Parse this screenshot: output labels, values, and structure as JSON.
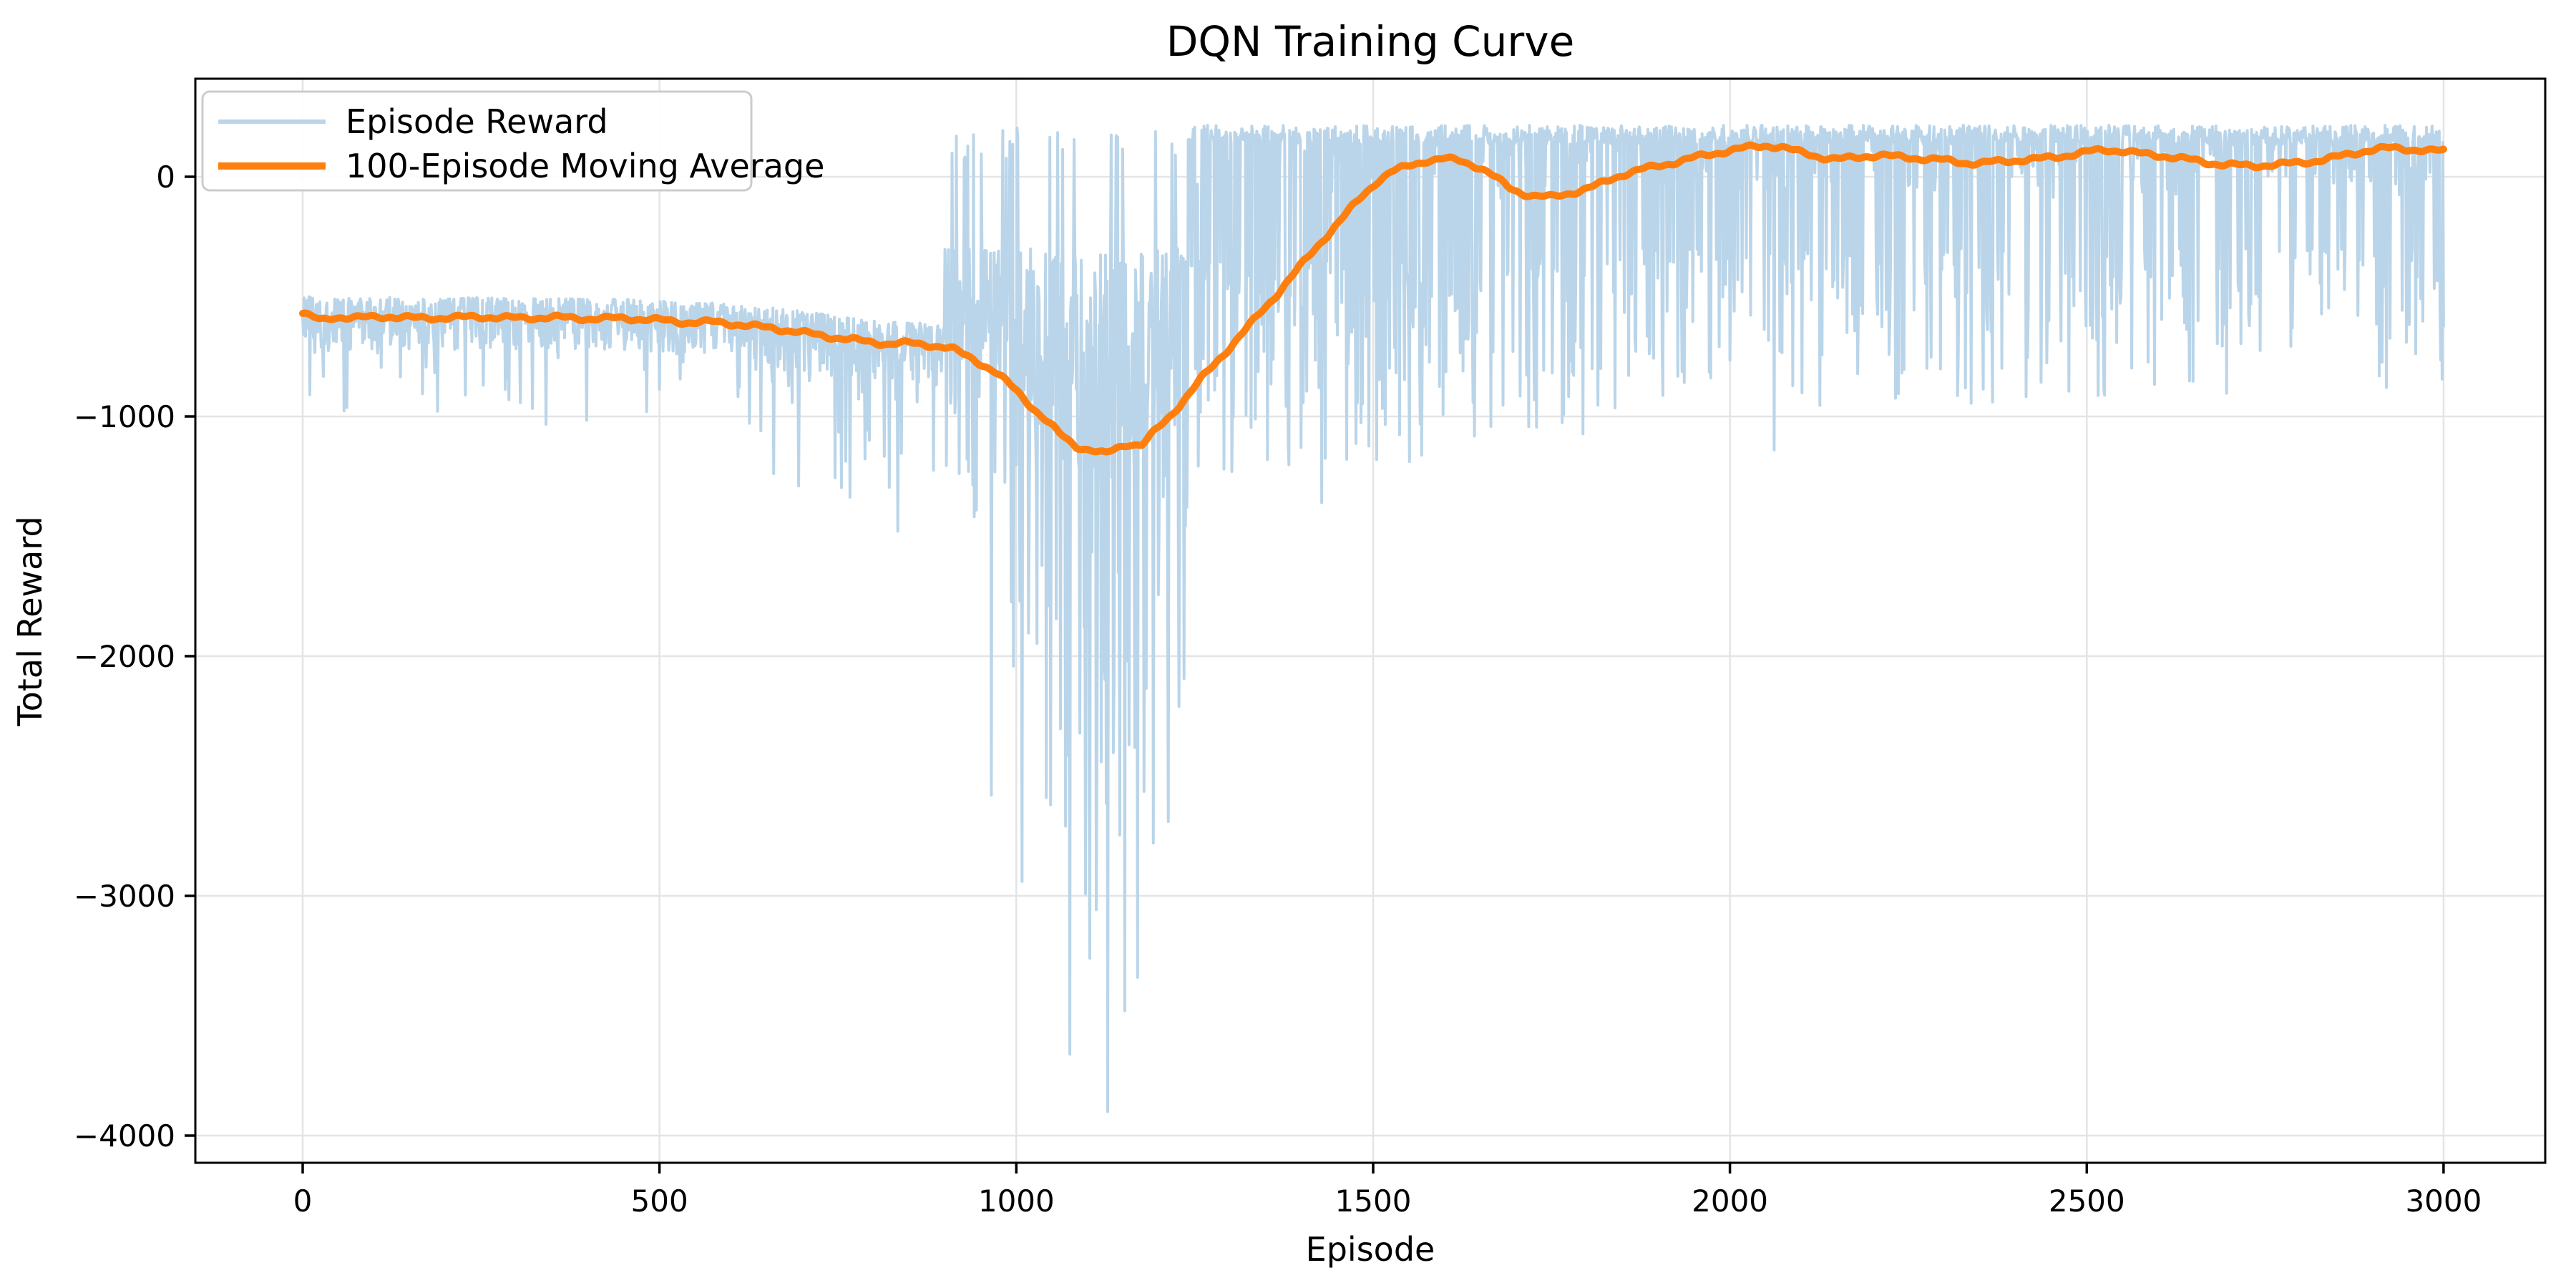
{
  "chart_data": {
    "type": "line",
    "title": "DQN Training Curve",
    "xlabel": "Episode",
    "ylabel": "Total Reward",
    "xlim": [
      -150,
      3145
    ],
    "ylim": [
      -4113,
      409
    ],
    "grid": true,
    "legend_position": "upper-left",
    "legend": [
      "Episode Reward",
      "100-Episode Moving Average"
    ],
    "x_ticks": [
      0,
      500,
      1000,
      1500,
      2000,
      2500,
      3000
    ],
    "x_tick_labels": [
      "0",
      "500",
      "1000",
      "1500",
      "2000",
      "2500",
      "3000"
    ],
    "y_ticks": [
      0,
      -1000,
      -2000,
      -3000,
      -4000
    ],
    "y_tick_labels": [
      "0",
      "−1000",
      "−2000",
      "−3000",
      "−4000"
    ],
    "episodes": 3000,
    "colors": {
      "episode_reward": "#bad5e9",
      "moving_average": "#ff7f0e",
      "grid": "#e4e4e4",
      "spine": "#000000",
      "legend_border": "#cccccc",
      "legend_bg": "rgba(255,255,255,0.9)"
    },
    "series": [
      {
        "name": "Episode Reward",
        "style": "noisy-line",
        "seed": 42,
        "segments": [
          {
            "from": 0,
            "to": 649,
            "kind": "band",
            "top_offset": 80,
            "spread": 215,
            "dip_prob": 0.055,
            "dip_extra": 380
          },
          {
            "from": 650,
            "to": 899,
            "kind": "band",
            "top_offset": 90,
            "spread": 260,
            "dip_prob": 0.1,
            "dip_extra": 620
          },
          {
            "from": 900,
            "to": 1239,
            "kind": "chaos",
            "center": 1120,
            "width": 150,
            "up_prob": 0.055,
            "up_min": 60,
            "up_max": 215,
            "deep_prob": 0.32,
            "band_top": -300,
            "band_spread": 700
          },
          {
            "from": 1240,
            "to": 1569,
            "kind": "plateau",
            "dip_prob": 0.4,
            "dip_min": -1250,
            "dip_max": -350
          },
          {
            "from": 1570,
            "to": 1799,
            "kind": "plateau",
            "dip_prob": 0.3,
            "dip_min": -1100,
            "dip_max": -330
          },
          {
            "from": 1800,
            "to": 2399,
            "kind": "plateau",
            "dip_prob": 0.22,
            "dip_min": -980,
            "dip_max": -300
          },
          {
            "from": 2400,
            "to": 3000,
            "kind": "plateau",
            "dip_prob": 0.2,
            "dip_min": -920,
            "dip_max": -300
          }
        ],
        "extreme_spikes": [
          [
            168,
            -905
          ],
          [
            482,
            -980
          ],
          [
            642,
            -1060
          ],
          [
            965,
            -2580
          ],
          [
            1008,
            -2940
          ],
          [
            1048,
            -2620
          ],
          [
            1075,
            -3660
          ],
          [
            1103,
            -3260
          ],
          [
            1128,
            -3900
          ],
          [
            1152,
            -3480
          ],
          [
            1170,
            -3340
          ],
          [
            1192,
            -2780
          ],
          [
            1213,
            -2690
          ],
          [
            1228,
            -2210
          ],
          [
            1302,
            -1230
          ],
          [
            1352,
            -1180
          ],
          [
            1428,
            -1360
          ],
          [
            1505,
            -1180
          ],
          [
            2062,
            -1140
          ]
        ]
      },
      {
        "name": "100-Episode Moving Average",
        "style": "smooth-line",
        "points": [
          [
            0,
            -570
          ],
          [
            25,
            -600
          ],
          [
            45,
            -585
          ],
          [
            80,
            -588
          ],
          [
            120,
            -583
          ],
          [
            160,
            -590
          ],
          [
            200,
            -588
          ],
          [
            250,
            -584
          ],
          [
            300,
            -590
          ],
          [
            350,
            -586
          ],
          [
            400,
            -592
          ],
          [
            450,
            -590
          ],
          [
            500,
            -598
          ],
          [
            540,
            -608
          ],
          [
            580,
            -606
          ],
          [
            620,
            -620
          ],
          [
            660,
            -632
          ],
          [
            700,
            -650
          ],
          [
            740,
            -668
          ],
          [
            780,
            -684
          ],
          [
            820,
            -697
          ],
          [
            850,
            -694
          ],
          [
            880,
            -702
          ],
          [
            910,
            -718
          ],
          [
            940,
            -760
          ],
          [
            970,
            -815
          ],
          [
            1000,
            -890
          ],
          [
            1030,
            -985
          ],
          [
            1060,
            -1070
          ],
          [
            1085,
            -1125
          ],
          [
            1105,
            -1142
          ],
          [
            1125,
            -1158
          ],
          [
            1140,
            -1132
          ],
          [
            1158,
            -1112
          ],
          [
            1175,
            -1122
          ],
          [
            1195,
            -1060
          ],
          [
            1215,
            -1000
          ],
          [
            1235,
            -930
          ],
          [
            1260,
            -840
          ],
          [
            1285,
            -758
          ],
          [
            1310,
            -675
          ],
          [
            1335,
            -592
          ],
          [
            1360,
            -508
          ],
          [
            1385,
            -418
          ],
          [
            1410,
            -332
          ],
          [
            1435,
            -245
          ],
          [
            1460,
            -162
          ],
          [
            1485,
            -80
          ],
          [
            1505,
            -20
          ],
          [
            1525,
            20
          ],
          [
            1550,
            45
          ],
          [
            1575,
            68
          ],
          [
            1600,
            75
          ],
          [
            1625,
            65
          ],
          [
            1650,
            38
          ],
          [
            1670,
            0
          ],
          [
            1690,
            -45
          ],
          [
            1710,
            -70
          ],
          [
            1730,
            -82
          ],
          [
            1750,
            -85
          ],
          [
            1770,
            -72
          ],
          [
            1790,
            -58
          ],
          [
            1810,
            -40
          ],
          [
            1830,
            -15
          ],
          [
            1850,
            10
          ],
          [
            1875,
            30
          ],
          [
            1900,
            45
          ],
          [
            1925,
            62
          ],
          [
            1950,
            80
          ],
          [
            1975,
            95
          ],
          [
            2000,
            110
          ],
          [
            2025,
            122
          ],
          [
            2050,
            130
          ],
          [
            2070,
            125
          ],
          [
            2090,
            108
          ],
          [
            2110,
            95
          ],
          [
            2130,
            80
          ],
          [
            2150,
            73
          ],
          [
            2170,
            78
          ],
          [
            2190,
            86
          ],
          [
            2210,
            90
          ],
          [
            2230,
            84
          ],
          [
            2250,
            80
          ],
          [
            2270,
            76
          ],
          [
            2290,
            72
          ],
          [
            2310,
            65
          ],
          [
            2330,
            58
          ],
          [
            2350,
            56
          ],
          [
            2370,
            62
          ],
          [
            2390,
            66
          ],
          [
            2410,
            70
          ],
          [
            2430,
            74
          ],
          [
            2450,
            80
          ],
          [
            2470,
            88
          ],
          [
            2490,
            98
          ],
          [
            2510,
            108
          ],
          [
            2530,
            112
          ],
          [
            2550,
            108
          ],
          [
            2570,
            98
          ],
          [
            2590,
            92
          ],
          [
            2610,
            86
          ],
          [
            2630,
            78
          ],
          [
            2650,
            68
          ],
          [
            2670,
            58
          ],
          [
            2690,
            52
          ],
          [
            2710,
            48
          ],
          [
            2730,
            45
          ],
          [
            2750,
            48
          ],
          [
            2770,
            52
          ],
          [
            2790,
            56
          ],
          [
            2810,
            62
          ],
          [
            2830,
            70
          ],
          [
            2850,
            82
          ],
          [
            2870,
            95
          ],
          [
            2890,
            108
          ],
          [
            2910,
            116
          ],
          [
            2930,
            120
          ],
          [
            2950,
            116
          ],
          [
            2970,
            110
          ],
          [
            2985,
            106
          ],
          [
            3000,
            110
          ]
        ]
      }
    ]
  }
}
